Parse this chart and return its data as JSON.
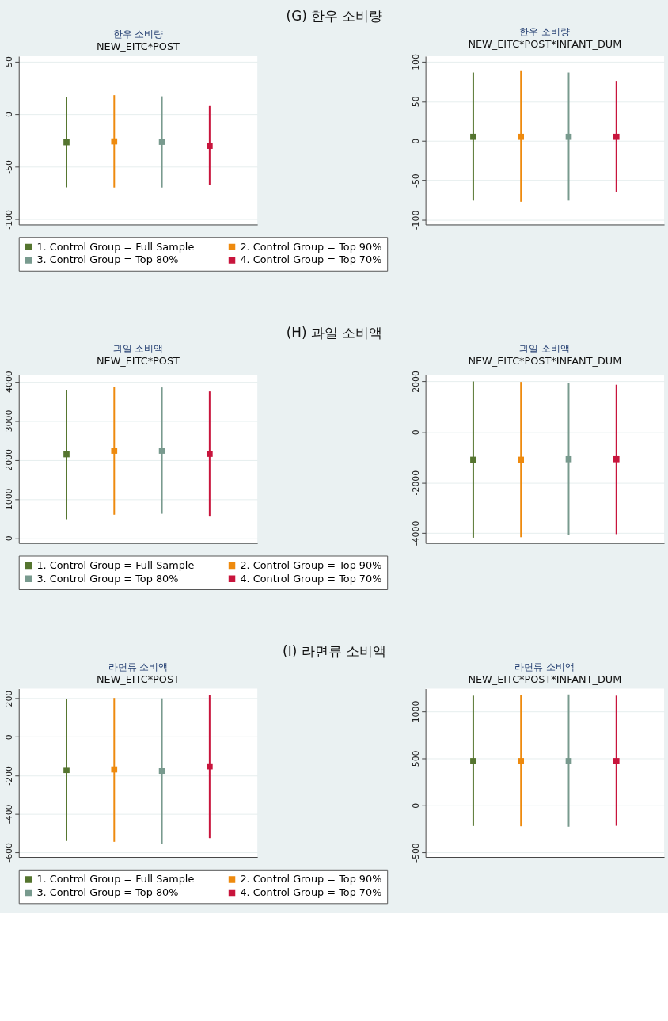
{
  "chart_data": [
    {
      "type": "scatter",
      "title": "한우 소비량",
      "subtitle": "NEW_EITC*POST",
      "annotations": [
        "(G) 한우 소비량"
      ],
      "categories": [
        null,
        null,
        null,
        null
      ],
      "ylim": [
        -105,
        55
      ],
      "yticks": [
        -100,
        -50,
        0,
        50
      ],
      "grid": "y",
      "marker": "square",
      "legend": "bottom",
      "tick_labels": "y",
      "series": [
        {
          "name": "1. Control Group = Full Sample",
          "color": "#55752f",
          "values": [
            -26.8,
            null,
            null,
            null
          ],
          "errors": [
            [
              -69.6,
              16.2
            ],
            null,
            null,
            null
          ]
        },
        {
          "name": "2. Control Group = Top 90%",
          "color": "#ee8a0e",
          "values": [
            null,
            -26,
            null,
            null
          ],
          "errors": [
            null,
            [
              -69.8,
              18
            ],
            null,
            null
          ]
        },
        {
          "name": "3. Control Group = Top 80%",
          "color": "#789a8e",
          "values": [
            null,
            null,
            -26.4,
            null
          ],
          "errors": [
            null,
            null,
            [
              -69.8,
              16.9
            ],
            null
          ]
        },
        {
          "name": "4. Control Group = Top 70%",
          "color": "#c8143c",
          "values": [
            null,
            null,
            null,
            -30.2
          ],
          "errors": [
            null,
            null,
            null,
            [
              -67.6,
              7.7
            ]
          ]
        }
      ]
    },
    {
      "type": "scatter",
      "title": "한우 소비량",
      "subtitle": "NEW_EITC*POST*INFANT_DUM",
      "categories": [
        null,
        null,
        null,
        null
      ],
      "ylim": [
        -106,
        107
      ],
      "yticks": [
        -100,
        -50,
        0,
        50,
        100
      ],
      "grid": "y",
      "marker": "square",
      "tick_labels": "y",
      "series": [
        {
          "color": "#55752f",
          "values": [
            5,
            null,
            null,
            null
          ],
          "errors": [
            [
              -75.8,
              86.4
            ],
            null,
            null,
            null
          ]
        },
        {
          "color": "#ee8a0e",
          "values": [
            null,
            5,
            null,
            null
          ],
          "errors": [
            null,
            [
              -77.3,
              88.2
            ],
            null,
            null
          ]
        },
        {
          "color": "#789a8e",
          "values": [
            null,
            null,
            5,
            null
          ],
          "errors": [
            null,
            null,
            [
              -75.8,
              86.4
            ],
            null
          ]
        },
        {
          "color": "#c8143c",
          "values": [
            null,
            null,
            null,
            5
          ],
          "errors": [
            null,
            null,
            null,
            [
              -65,
              75.8
            ]
          ]
        }
      ]
    },
    {
      "type": "scatter",
      "title": "과일 소비액",
      "subtitle": "NEW_EITC*POST",
      "annotations": [
        "(H) 과일 소비액"
      ],
      "categories": [
        null,
        null,
        null,
        null
      ],
      "ylim": [
        -130,
        4170
      ],
      "yticks": [
        0,
        1000,
        2000,
        3000,
        4000
      ],
      "grid": "y",
      "marker": "square",
      "legend": "bottom",
      "tick_labels": "y",
      "series": [
        {
          "name": "1. Control Group = Full Sample",
          "color": "#55752f",
          "values": [
            2140,
            null,
            null,
            null
          ],
          "errors": [
            [
              483,
              3777
            ],
            null,
            null,
            null
          ]
        },
        {
          "name": "2. Control Group = Top 90%",
          "color": "#ee8a0e",
          "values": [
            null,
            2230,
            null,
            null
          ],
          "errors": [
            null,
            [
              597,
              3867
            ],
            null,
            null
          ]
        },
        {
          "name": "3. Control Group = Top 80%",
          "color": "#789a8e",
          "values": [
            null,
            null,
            2230,
            null
          ],
          "errors": [
            null,
            null,
            [
              621,
              3849
            ],
            null
          ]
        },
        {
          "name": "4. Control Group = Top 70%",
          "color": "#c8143c",
          "values": [
            null,
            null,
            null,
            2150
          ],
          "errors": [
            null,
            null,
            null,
            [
              549,
              3747
            ]
          ]
        }
      ]
    },
    {
      "type": "scatter",
      "title": "과일 소비액",
      "subtitle": "NEW_EITC*POST*INFANT_DUM",
      "categories": [
        null,
        null,
        null,
        null
      ],
      "ylim": [
        -4400,
        2260
      ],
      "yticks": [
        -4000,
        -2000,
        0,
        2000
      ],
      "grid": "y",
      "marker": "square",
      "tick_labels": "y",
      "series": [
        {
          "color": "#55752f",
          "values": [
            -1100,
            null,
            null,
            null
          ],
          "errors": [
            [
              -4187,
              2000
            ],
            null,
            null,
            null
          ]
        },
        {
          "color": "#ee8a0e",
          "values": [
            null,
            -1100,
            null,
            null
          ],
          "errors": [
            null,
            [
              -4168,
              1981
            ],
            null,
            null
          ]
        },
        {
          "color": "#789a8e",
          "values": [
            null,
            null,
            -1080,
            null
          ],
          "errors": [
            null,
            null,
            [
              -4075,
              1925
            ],
            null
          ]
        },
        {
          "color": "#c8143c",
          "values": [
            null,
            null,
            null,
            -1080
          ],
          "errors": [
            null,
            null,
            null,
            [
              -4047,
              1869
            ]
          ]
        }
      ]
    },
    {
      "type": "scatter",
      "title": "라면류 소비액",
      "subtitle": "NEW_EITC*POST",
      "annotations": [
        "(I) 라면류 소비액"
      ],
      "categories": [
        null,
        null,
        null,
        null
      ],
      "ylim": [
        -625,
        250
      ],
      "yticks": [
        -600,
        -400,
        -200,
        0,
        200
      ],
      "grid": "y",
      "marker": "square",
      "legend": "bottom",
      "tick_labels": "y",
      "series": [
        {
          "name": "1. Control Group = Full Sample",
          "color": "#55752f",
          "values": [
            -173,
            null,
            null,
            null
          ],
          "errors": [
            [
              -542,
              196
            ],
            null,
            null,
            null
          ]
        },
        {
          "name": "2. Control Group = Top 90%",
          "color": "#ee8a0e",
          "values": [
            null,
            -170,
            null,
            null
          ],
          "errors": [
            null,
            [
              -546,
              202
            ],
            null,
            null
          ]
        },
        {
          "name": "3. Control Group = Top 80%",
          "color": "#789a8e",
          "values": [
            null,
            null,
            -177,
            null
          ],
          "errors": [
            null,
            null,
            [
              -556,
              200
            ],
            null
          ]
        },
        {
          "name": "4. Control Group = Top 70%",
          "color": "#c8143c",
          "values": [
            null,
            null,
            null,
            -154
          ],
          "errors": [
            null,
            null,
            null,
            [
              -527,
              218
            ]
          ]
        }
      ]
    },
    {
      "type": "scatter",
      "title": "라면류 소비액",
      "subtitle": "NEW_EITC*POST*INFANT_DUM",
      "categories": [
        null,
        null,
        null,
        null
      ],
      "ylim": [
        -550,
        1240
      ],
      "yticks": [
        -500,
        0,
        500,
        1000
      ],
      "grid": "y",
      "marker": "square",
      "tick_labels": "y",
      "series": [
        {
          "color": "#55752f",
          "values": [
            470,
            null,
            null,
            null
          ],
          "errors": [
            [
              -220,
              1166
            ],
            null,
            null,
            null
          ]
        },
        {
          "color": "#ee8a0e",
          "values": [
            null,
            470,
            null,
            null
          ],
          "errors": [
            null,
            [
              -223,
              1174
            ],
            null,
            null
          ]
        },
        {
          "color": "#789a8e",
          "values": [
            null,
            null,
            470,
            null
          ],
          "errors": [
            null,
            null,
            [
              -228,
              1179
            ],
            null
          ]
        },
        {
          "color": "#c8143c",
          "values": [
            null,
            null,
            null,
            470
          ],
          "errors": [
            null,
            null,
            null,
            [
              -218,
              1166
            ]
          ]
        }
      ]
    }
  ]
}
